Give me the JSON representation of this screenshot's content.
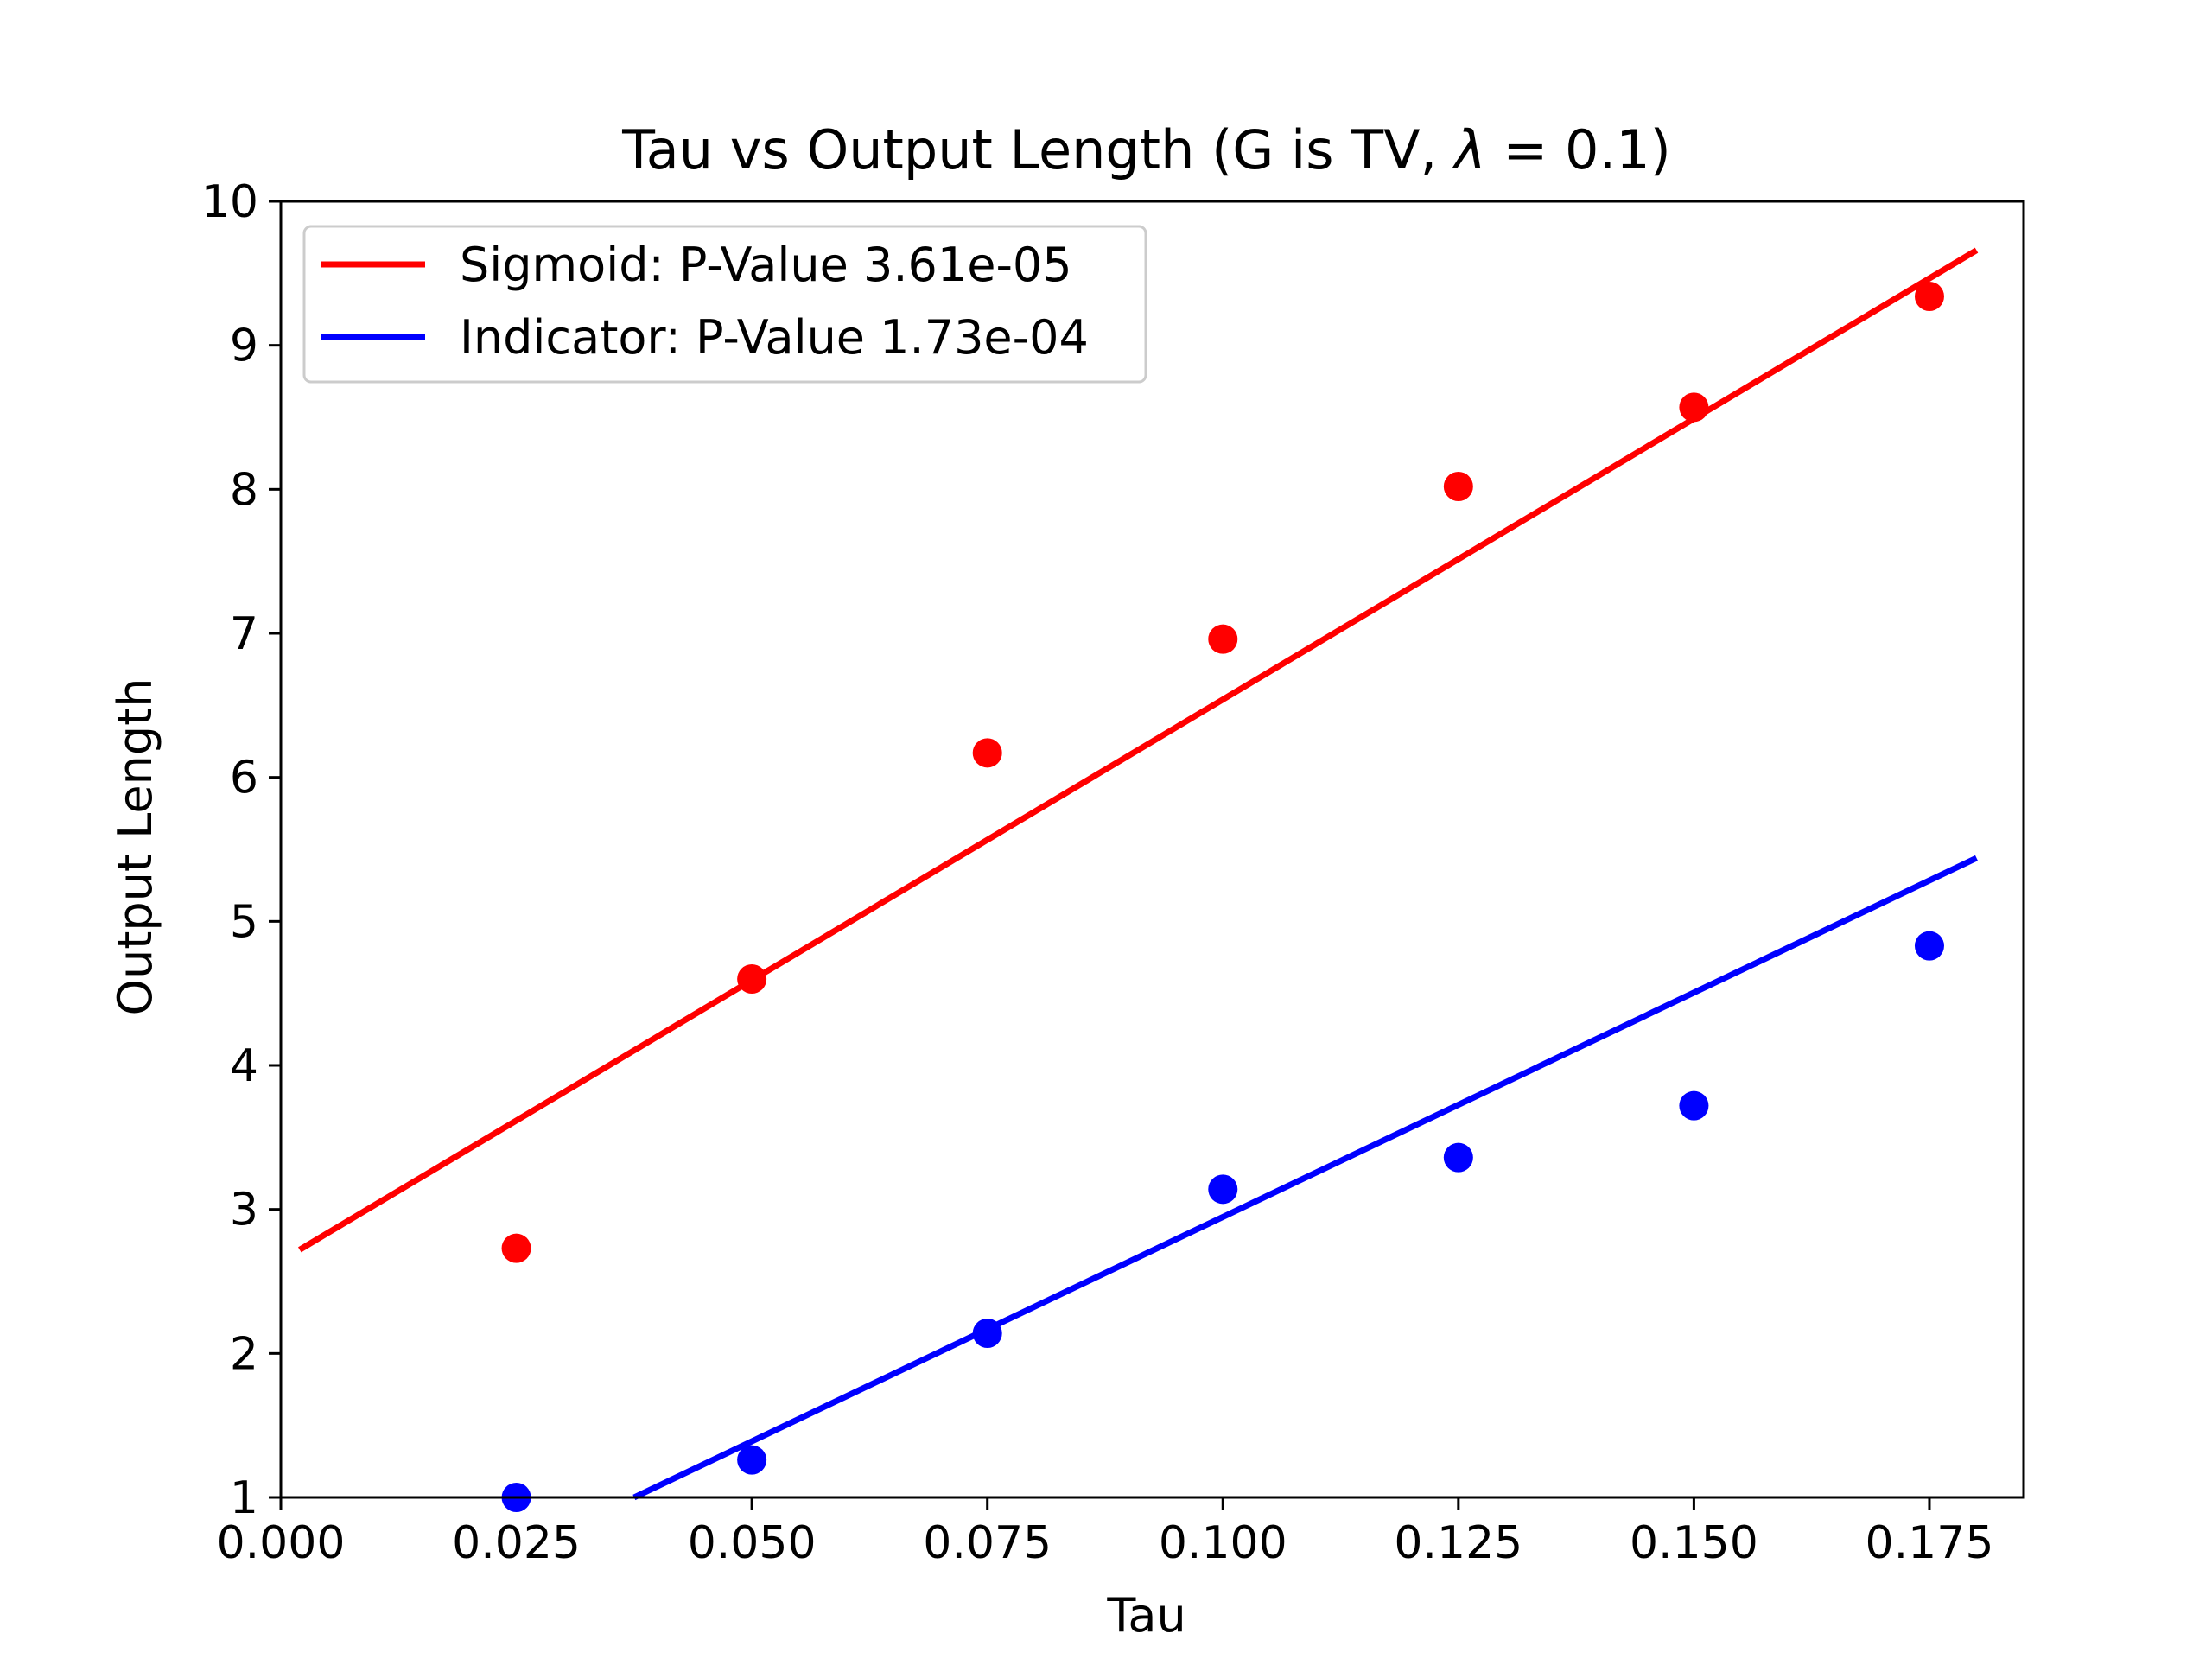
{
  "chart_data": {
    "type": "scatter",
    "title": "Tau vs Output Length (G is TV, λ = 0.1)",
    "title_plain": "Tau vs Output Length (G is TV, ",
    "title_lambda": "λ",
    "title_eq": " = 0.1)",
    "xlabel": "Tau",
    "ylabel": "Output Length",
    "xlim": [
      0.0,
      0.185
    ],
    "ylim": [
      1,
      10
    ],
    "x_ticks": [
      0.0,
      0.025,
      0.05,
      0.075,
      0.1,
      0.125,
      0.15,
      0.175
    ],
    "x_tick_labels": [
      "0.000",
      "0.025",
      "0.050",
      "0.075",
      "0.100",
      "0.125",
      "0.150",
      "0.175"
    ],
    "y_ticks": [
      1,
      2,
      3,
      4,
      5,
      6,
      7,
      8,
      9,
      10
    ],
    "y_tick_labels": [
      "1",
      "2",
      "3",
      "4",
      "5",
      "6",
      "7",
      "8",
      "9",
      "10"
    ],
    "legend_position": "top-left",
    "grid": false,
    "series": [
      {
        "name": "Sigmoid: P-Value 3.61e-05",
        "color": "#ff0000",
        "x": [
          0.025,
          0.05,
          0.075,
          0.1,
          0.125,
          0.15,
          0.175
        ],
        "y": [
          2.73,
          4.6,
          6.17,
          6.96,
          8.02,
          8.57,
          9.34
        ],
        "fit_line": {
          "x": [
            0.002,
            0.18
          ],
          "y": [
            2.72,
            9.66
          ]
        }
      },
      {
        "name": "Indicator: P-Value 1.73e-04",
        "color": "#0000ff",
        "x": [
          0.025,
          0.05,
          0.075,
          0.1,
          0.125,
          0.15,
          0.175
        ],
        "y": [
          1.0,
          1.26,
          2.14,
          3.14,
          3.36,
          3.72,
          4.83
        ],
        "fit_line": {
          "x": [
            0.0375,
            0.18
          ],
          "y": [
            1.0,
            5.44
          ]
        }
      }
    ]
  }
}
